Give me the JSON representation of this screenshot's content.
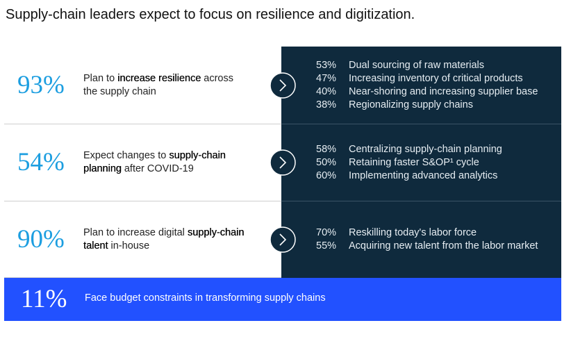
{
  "header": {
    "title": "Supply-chain leaders expect to focus on resilience and digitization."
  },
  "rows": [
    {
      "percent": "93%",
      "description": [
        {
          "text": "Plan to "
        },
        {
          "text": "increase resilience",
          "strong": true
        },
        {
          "text": " across the supply chain"
        }
      ],
      "items": [
        {
          "percent": "53%",
          "text": "Dual sourcing of raw materials"
        },
        {
          "percent": "47%",
          "text": "Increasing inventory of critical products"
        },
        {
          "percent": "40%",
          "text": "Near-shoring and increasing supplier base"
        },
        {
          "percent": "38%",
          "text": "Regionalizing supply chains"
        }
      ]
    },
    {
      "percent": "54%",
      "description": [
        {
          "text": "Expect changes to "
        },
        {
          "text": "supply-chain planning",
          "strong": true
        },
        {
          "text": " after COVID-19"
        }
      ],
      "items": [
        {
          "percent": "58%",
          "text": "Centralizing supply-chain planning"
        },
        {
          "percent": "50%",
          "text": "Retaining faster S&OP¹ cycle"
        },
        {
          "percent": "60%",
          "text": "Implementing advanced analytics"
        }
      ]
    },
    {
      "percent": "90%",
      "description": [
        {
          "text": "Plan to increase digital "
        },
        {
          "text": "supply-chain talent",
          "strong": true
        },
        {
          "text": " in-house"
        }
      ],
      "items": [
        {
          "percent": "70%",
          "text": "Reskilling today's labor force"
        },
        {
          "percent": "55%",
          "text": "Acquiring new talent from the labor market"
        }
      ]
    }
  ],
  "footer": {
    "percent": "11%",
    "text": "Face budget constraints in transforming supply chains"
  }
}
